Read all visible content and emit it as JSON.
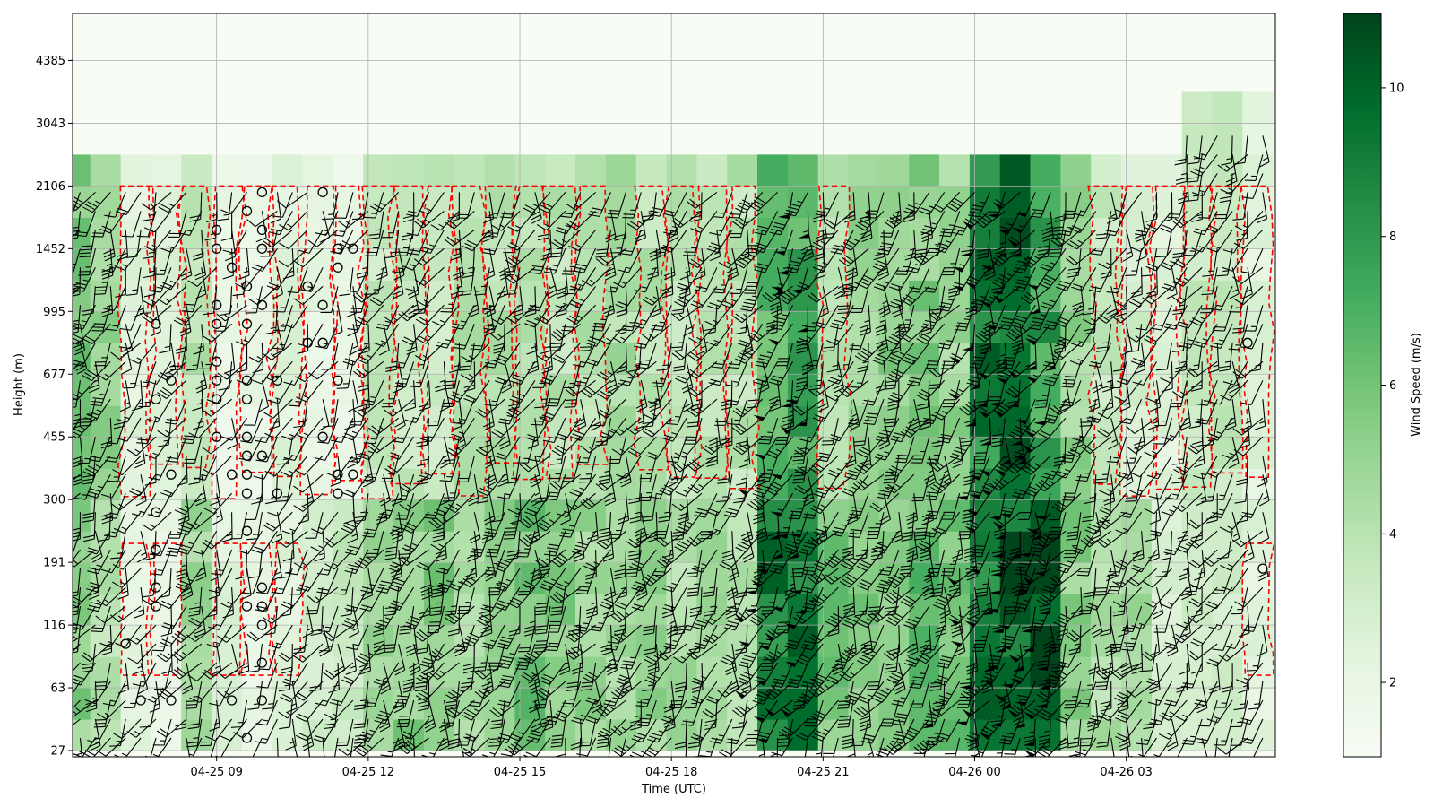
{
  "chart_data": {
    "type": "heatmap",
    "xlabel": "Time (UTC)",
    "ylabel": "Height (m)",
    "colorbar_label": "Wind Speed (m/s)",
    "colormap": "Greens",
    "x_ticks": [
      "04-25 09",
      "04-25 12",
      "04-25 15",
      "04-25 18",
      "04-25 21",
      "04-26 00",
      "04-26 03"
    ],
    "x_tick_hours": [
      9,
      12,
      15,
      18,
      21,
      24,
      27
    ],
    "xlim_hours": [
      6.15,
      29.95
    ],
    "y_ticks": [
      "27",
      "63",
      "116",
      "191",
      "300",
      "455",
      "677",
      "995",
      "1452",
      "2106",
      "3043",
      "4385"
    ],
    "ylim_level_index": [
      -0.1,
      11.75
    ],
    "colorbar_ticks": [
      2,
      4,
      6,
      8,
      10
    ],
    "colorbar_range": [
      1.0,
      11.0
    ],
    "grid": true,
    "overlay": "wind barbs at each time/height with calm circles; red dashed contours outlining low-speed regions",
    "wind_speed_field": {
      "time_hours": [
        6.2,
        6.8,
        7.4,
        8.0,
        8.6,
        9.2,
        9.8,
        10.4,
        11.0,
        11.6,
        12.2,
        12.8,
        13.4,
        14.0,
        14.6,
        15.2,
        15.8,
        16.4,
        17.0,
        17.6,
        18.2,
        18.8,
        19.4,
        20.0,
        20.6,
        21.2,
        21.8,
        22.4,
        23.0,
        23.6,
        24.2,
        24.8,
        25.4,
        26.0,
        26.6,
        27.2,
        27.8,
        28.4,
        29.0,
        29.6
      ],
      "height_level_index": [
        0,
        1,
        2,
        3,
        4,
        5,
        6,
        7,
        8,
        9,
        10
      ],
      "upper_valid_level_index": [
        9.1,
        9.1,
        9.1,
        9.1,
        9.1,
        9.1,
        9.1,
        9.1,
        9.1,
        9.1,
        9.1,
        9.1,
        9.1,
        9.1,
        9.1,
        9.1,
        9.1,
        9.1,
        9.1,
        9.1,
        9.1,
        9.1,
        9.1,
        9.1,
        9.1,
        9.1,
        9.1,
        9.1,
        9.1,
        9.1,
        9.1,
        9.1,
        9.1,
        9.1,
        9.1,
        9.1,
        9.1,
        10.0,
        10.0,
        10.0
      ],
      "speed_low": [
        5.5,
        4.0,
        2.2,
        2.0,
        4.8,
        2.5,
        2.0,
        2.5,
        3.0,
        3.5,
        5.0,
        5.5,
        5.5,
        5.0,
        5.0,
        6.0,
        5.5,
        5.0,
        5.0,
        5.0,
        4.5,
        4.5,
        4.5,
        9.5,
        9.0,
        6.0,
        5.5,
        6.0,
        6.5,
        6.0,
        9.0,
        10.5,
        10.0,
        5.5,
        4.5,
        4.5,
        3.0,
        3.5,
        3.0,
        2.5
      ],
      "speed_high": [
        6.0,
        5.0,
        2.5,
        2.5,
        4.0,
        2.0,
        2.0,
        2.5,
        2.0,
        2.0,
        3.5,
        3.5,
        3.5,
        4.0,
        4.0,
        4.0,
        4.0,
        4.0,
        4.5,
        4.0,
        4.0,
        4.0,
        4.0,
        6.5,
        7.5,
        4.0,
        5.0,
        5.5,
        5.5,
        5.0,
        9.0,
        10.5,
        8.0,
        5.0,
        3.5,
        3.0,
        2.5,
        3.5,
        3.5,
        2.5
      ]
    }
  }
}
